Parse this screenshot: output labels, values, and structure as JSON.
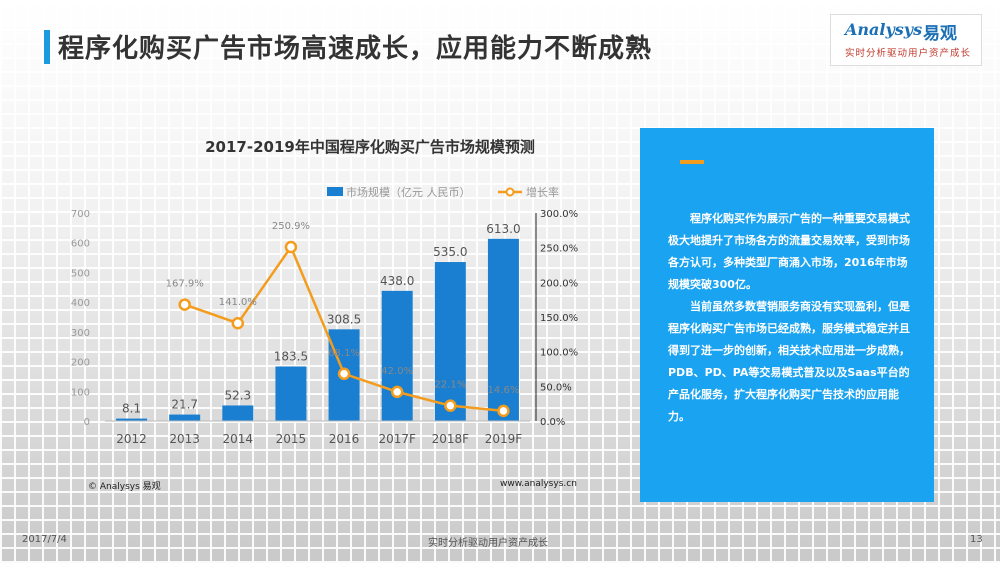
{
  "page": {
    "title": "程序化购买广告市场高速成长，应用能力不断成熟"
  },
  "logo": {
    "brand": "Analysys",
    "brand_cn": "易观",
    "slogan": "实时分析驱动用户资产成长"
  },
  "chart_data": {
    "type": "bar",
    "title": "2017-2019年中国程序化购买广告市场规模预测",
    "categories": [
      "2012",
      "2013",
      "2014",
      "2015",
      "2016",
      "2017F",
      "2018F",
      "2019F"
    ],
    "series": [
      {
        "name": "市场规模（亿元 人民币）",
        "type": "bar",
        "axis": "left",
        "color": "#1a7fd0",
        "values": [
          8.1,
          21.7,
          52.3,
          183.5,
          308.5,
          438.0,
          535.0,
          613.0
        ],
        "labels": [
          "8.1",
          "21.7",
          "52.3",
          "183.5",
          "308.5",
          "438.0",
          "535.0",
          "613.0"
        ]
      },
      {
        "name": "增长率",
        "type": "line",
        "axis": "right",
        "color": "#f39c1e",
        "values": [
          null,
          167.9,
          141.0,
          250.9,
          68.1,
          42.0,
          22.1,
          14.6
        ],
        "labels": [
          "",
          "167.9%",
          "141.0%",
          "250.9%",
          "68.1%",
          "42.0%",
          "22.1%",
          "14.6%"
        ]
      }
    ],
    "ylim_left": [
      0,
      700
    ],
    "yticks_left": [
      "0",
      "100",
      "200",
      "300",
      "400",
      "500",
      "600",
      "700"
    ],
    "ylim_right": [
      0,
      300
    ],
    "yticks_right": [
      "0.0%",
      "50.0%",
      "100.0%",
      "150.0%",
      "200.0%",
      "250.0%",
      "300.0%"
    ],
    "legend_position": "top"
  },
  "chart_footer": {
    "copyright": "© Analysys 易观",
    "website": "www.analysys.cn"
  },
  "side_panel": {
    "paragraphs": [
      "程序化购买作为展示广告的一种重要交易模式极大地提升了市场各方的流量交易效率，受到市场各方认可，多种类型厂商涌入市场，2016年市场规模突破300亿。",
      "当前虽然多数营销服务商没有实现盈利，但是程序化购买广告市场已经成熟，服务模式稳定并且得到了进一步的创新，相关技术应用进一步成熟，PDB、PD、PA等交易模式普及以及Saas平台的产品化服务，扩大程序化购买广告技术的应用能力。"
    ],
    "accent_color": "#f39c1e",
    "background_color": "#1aa3f0"
  },
  "footer": {
    "date": "2017/7/4",
    "slogan": "实时分析驱动用户资产成长",
    "page_number": "13"
  }
}
